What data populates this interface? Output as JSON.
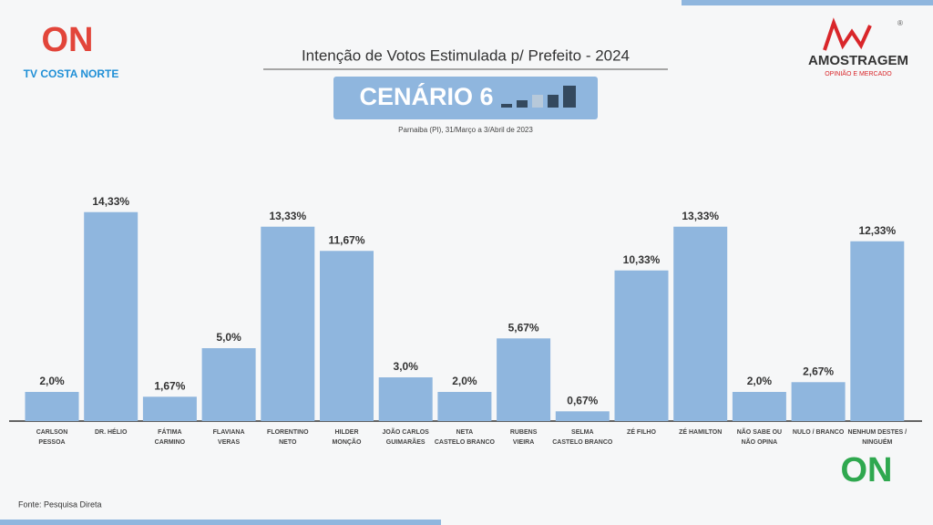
{
  "header": {
    "channel": "TV COSTA NORTE",
    "channel_logo": "ON",
    "scenario": "CENÁRIO 6",
    "company": "AMOSTRAGEM",
    "company_tagline": "OPINIÃO E MERCADO",
    "registered": "®",
    "source": "Fonte: Pesquisa Direta",
    "corner_logo": "ON"
  },
  "chart_data": {
    "type": "bar",
    "title": "Intenção de Votos Estimulada p/ Prefeito - 2024",
    "subtitle": "Parnaiba (PI), 31/Março a 3/Abril de 2023",
    "categories": [
      [
        "CARLSON",
        "PESSOA"
      ],
      [
        "DR. HÉLIO"
      ],
      [
        "FÁTIMA",
        "CARMINO"
      ],
      [
        "FLAVIANA",
        "VERAS"
      ],
      [
        "FLORENTINO",
        "NETO"
      ],
      [
        "HILDER",
        "MONÇÃO"
      ],
      [
        "JOÃO CARLOS",
        "GUIMARÃES"
      ],
      [
        "NETA",
        "CASTELO BRANCO"
      ],
      [
        "RUBENS",
        "VIEIRA"
      ],
      [
        "SELMA",
        "CASTELO BRANCO"
      ],
      [
        "ZÉ FILHO"
      ],
      [
        "ZÉ HAMILTON"
      ],
      [
        "NÃO SABE OU",
        "NÃO OPINA"
      ],
      [
        "NULO / BRANCO"
      ],
      [
        "NENHUM DESTES /",
        "NINGUÉM"
      ]
    ],
    "values": [
      2.0,
      14.33,
      1.67,
      5.0,
      13.33,
      11.67,
      3.0,
      2.0,
      5.67,
      0.67,
      10.33,
      13.33,
      2.0,
      2.67,
      12.33
    ],
    "value_labels": [
      "2,0%",
      "14,33%",
      "1,67%",
      "5,0%",
      "13,33%",
      "11,67%",
      "3,0%",
      "2,0%",
      "5,67%",
      "0,67%",
      "10,33%",
      "13,33%",
      "2,0%",
      "2,67%",
      "12,33%"
    ],
    "color": "#8fb6de",
    "ylim": [
      0,
      16
    ]
  }
}
